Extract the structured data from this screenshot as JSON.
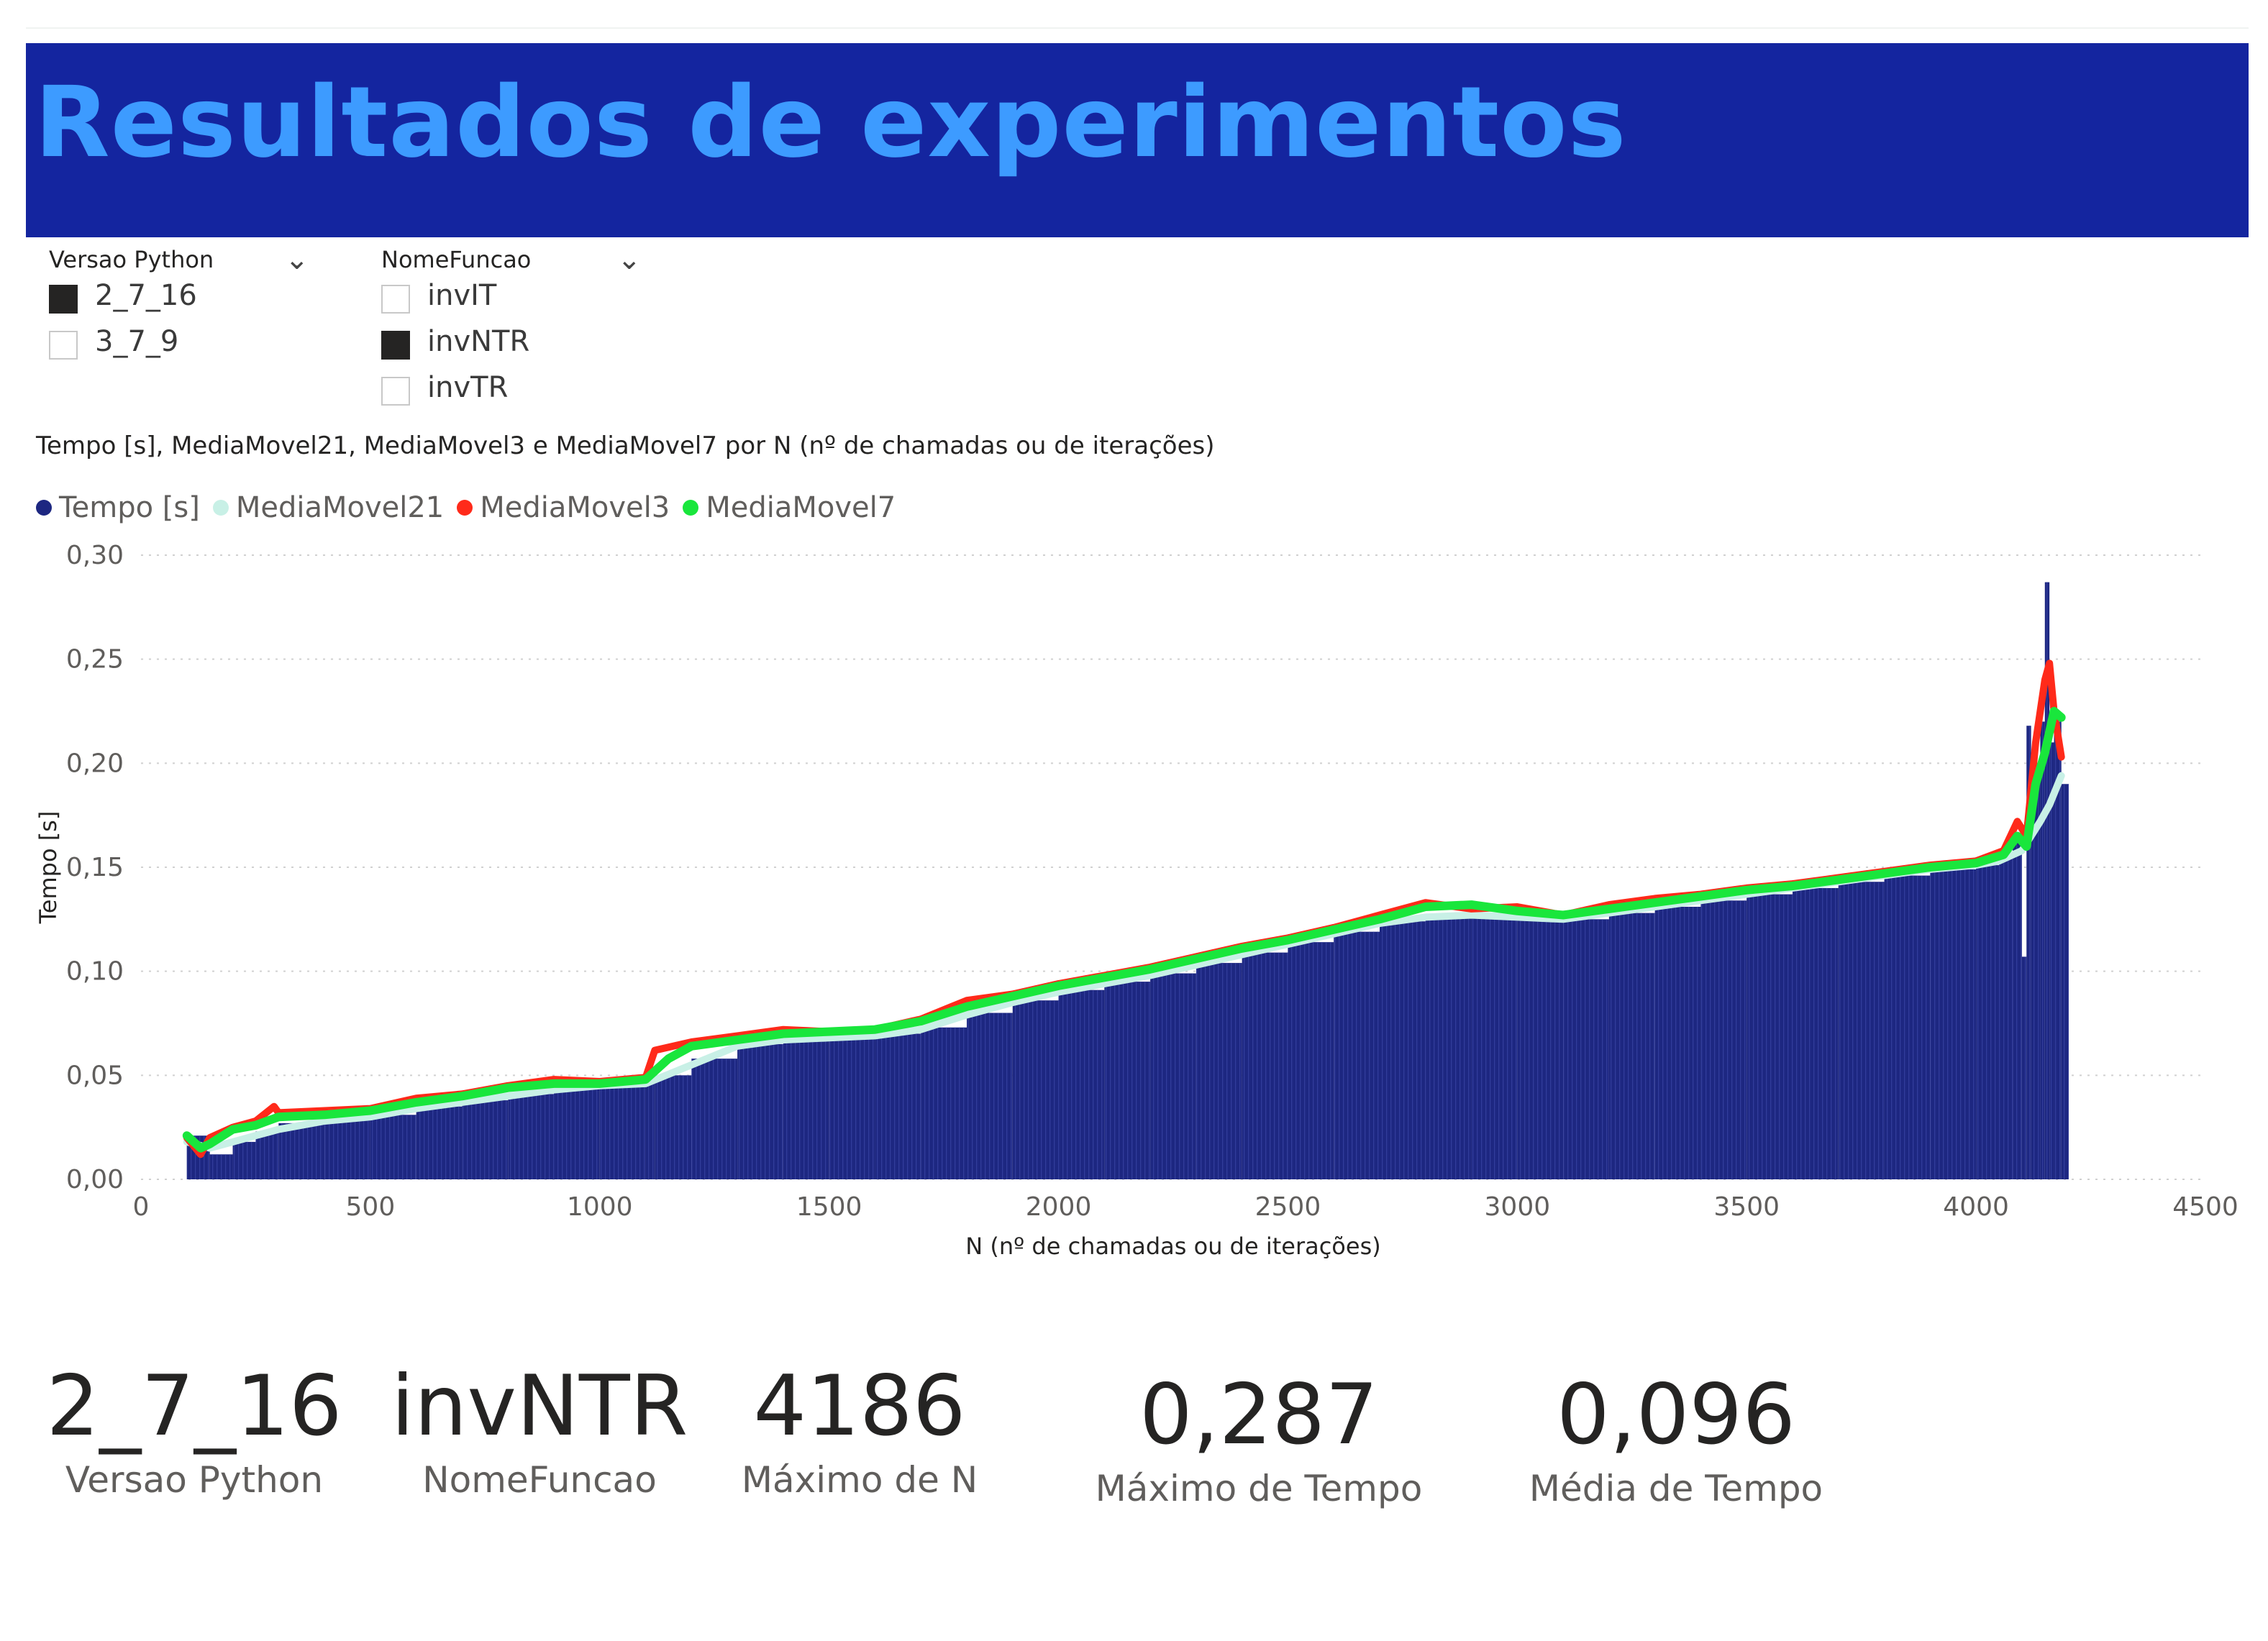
{
  "page": {
    "title": "Resultados de experimentos"
  },
  "slicers": {
    "version": {
      "title": "Versao Python",
      "options": [
        {
          "label": "2_7_16",
          "checked": true
        },
        {
          "label": "3_7_9",
          "checked": false
        }
      ]
    },
    "function": {
      "title": "NomeFuncao",
      "options": [
        {
          "label": "invIT",
          "checked": false
        },
        {
          "label": "invNTR",
          "checked": true
        },
        {
          "label": "invTR",
          "checked": false
        }
      ]
    }
  },
  "chart_title": "Tempo [s], MediaMovel21, MediaMovel3 e MediaMovel7 por N (nº de chamadas ou de iterações)",
  "chart_data": {
    "type": "bar",
    "xlabel": "N (nº de chamadas ou de iterações)",
    "ylabel": "Tempo [s]",
    "xlim": [
      0,
      4500
    ],
    "ylim": [
      0,
      0.3
    ],
    "xticks": [
      "0",
      "500",
      "1000",
      "1500",
      "2000",
      "2500",
      "3000",
      "3500",
      "4000",
      "4500"
    ],
    "yticks": [
      "0,00",
      "0,05",
      "0,10",
      "0,15",
      "0,20",
      "0,25",
      "0,30"
    ],
    "grid": true,
    "legend_position": "top-left",
    "colors": {
      "Tempo [s]": "#1d2781",
      "MediaMovel21": "#c8f0e6",
      "MediaMovel3": "#ff2a1a",
      "MediaMovel7": "#19e63c"
    },
    "series": [
      {
        "name": "Tempo [s]",
        "kind": "bar",
        "x": [
          100,
          150,
          200,
          250,
          300,
          400,
          500,
          600,
          700,
          800,
          900,
          1000,
          1100,
          1120,
          1200,
          1300,
          1400,
          1500,
          1600,
          1700,
          1800,
          1900,
          2000,
          2100,
          2200,
          2300,
          2400,
          2500,
          2600,
          2700,
          2800,
          2900,
          3000,
          3100,
          3200,
          3300,
          3400,
          3500,
          3600,
          3700,
          3800,
          3900,
          4000,
          4050,
          4080,
          4100,
          4110,
          4120,
          4140,
          4150,
          4160,
          4170,
          4186
        ],
        "y": [
          0.021,
          0.012,
          0.018,
          0.023,
          0.027,
          0.029,
          0.031,
          0.035,
          0.038,
          0.041,
          0.044,
          0.045,
          0.047,
          0.05,
          0.058,
          0.065,
          0.068,
          0.069,
          0.07,
          0.073,
          0.08,
          0.086,
          0.091,
          0.095,
          0.099,
          0.104,
          0.109,
          0.114,
          0.119,
          0.124,
          0.127,
          0.128,
          0.127,
          0.125,
          0.128,
          0.131,
          0.134,
          0.137,
          0.14,
          0.143,
          0.146,
          0.149,
          0.151,
          0.155,
          0.165,
          0.107,
          0.218,
          0.2,
          0.22,
          0.287,
          0.21,
          0.22,
          0.19
        ]
      },
      {
        "name": "MediaMovel21",
        "kind": "line",
        "x": [
          100,
          150,
          200,
          250,
          300,
          400,
          500,
          600,
          700,
          800,
          900,
          1000,
          1100,
          1200,
          1300,
          1400,
          1500,
          1600,
          1700,
          1800,
          1900,
          2000,
          2100,
          2200,
          2300,
          2400,
          2500,
          2600,
          2700,
          2800,
          2900,
          3000,
          3100,
          3200,
          3300,
          3400,
          3500,
          3600,
          3700,
          3800,
          3900,
          4000,
          4050,
          4100,
          4120,
          4140,
          4160,
          4186
        ],
        "y": [
          0.018,
          0.015,
          0.018,
          0.021,
          0.024,
          0.028,
          0.03,
          0.034,
          0.037,
          0.04,
          0.043,
          0.045,
          0.046,
          0.055,
          0.064,
          0.067,
          0.068,
          0.069,
          0.072,
          0.079,
          0.085,
          0.09,
          0.094,
          0.098,
          0.103,
          0.108,
          0.113,
          0.118,
          0.123,
          0.126,
          0.127,
          0.126,
          0.125,
          0.128,
          0.131,
          0.134,
          0.137,
          0.14,
          0.143,
          0.146,
          0.149,
          0.151,
          0.153,
          0.158,
          0.165,
          0.172,
          0.18,
          0.194
        ]
      },
      {
        "name": "MediaMovel3",
        "kind": "line",
        "x": [
          100,
          130,
          150,
          200,
          250,
          290,
          300,
          400,
          500,
          600,
          700,
          800,
          900,
          1000,
          1100,
          1120,
          1200,
          1300,
          1400,
          1500,
          1600,
          1700,
          1800,
          1900,
          2000,
          2100,
          2200,
          2300,
          2400,
          2500,
          2600,
          2700,
          2800,
          2900,
          3000,
          3100,
          3200,
          3300,
          3400,
          3500,
          3600,
          3700,
          3800,
          3900,
          4000,
          4060,
          4090,
          4110,
          4130,
          4150,
          4160,
          4170,
          4186
        ],
        "y": [
          0.02,
          0.012,
          0.02,
          0.025,
          0.028,
          0.035,
          0.032,
          0.033,
          0.034,
          0.039,
          0.041,
          0.045,
          0.048,
          0.047,
          0.049,
          0.062,
          0.066,
          0.069,
          0.072,
          0.071,
          0.072,
          0.077,
          0.086,
          0.089,
          0.094,
          0.098,
          0.102,
          0.107,
          0.112,
          0.116,
          0.121,
          0.127,
          0.133,
          0.13,
          0.131,
          0.127,
          0.132,
          0.135,
          0.137,
          0.14,
          0.142,
          0.145,
          0.148,
          0.151,
          0.153,
          0.158,
          0.172,
          0.165,
          0.21,
          0.24,
          0.248,
          0.225,
          0.203
        ]
      },
      {
        "name": "MediaMovel7",
        "kind": "line",
        "x": [
          100,
          130,
          150,
          200,
          250,
          300,
          400,
          500,
          600,
          700,
          800,
          900,
          1000,
          1100,
          1150,
          1200,
          1300,
          1400,
          1500,
          1600,
          1700,
          1800,
          1900,
          2000,
          2100,
          2200,
          2300,
          2400,
          2500,
          2600,
          2700,
          2800,
          2900,
          3000,
          3100,
          3200,
          3300,
          3400,
          3500,
          3600,
          3700,
          3800,
          3900,
          4000,
          4060,
          4090,
          4110,
          4130,
          4150,
          4170,
          4186
        ],
        "y": [
          0.021,
          0.015,
          0.017,
          0.024,
          0.026,
          0.03,
          0.031,
          0.033,
          0.037,
          0.04,
          0.044,
          0.046,
          0.046,
          0.048,
          0.058,
          0.064,
          0.067,
          0.07,
          0.071,
          0.072,
          0.076,
          0.083,
          0.088,
          0.093,
          0.097,
          0.101,
          0.106,
          0.111,
          0.115,
          0.12,
          0.125,
          0.131,
          0.132,
          0.129,
          0.127,
          0.13,
          0.133,
          0.136,
          0.139,
          0.141,
          0.144,
          0.147,
          0.15,
          0.152,
          0.156,
          0.165,
          0.16,
          0.19,
          0.205,
          0.225,
          0.222
        ]
      }
    ]
  },
  "kpis": [
    {
      "value": "2_7_16",
      "label": "Versao Python"
    },
    {
      "value": "invNTR",
      "label": "NomeFuncao"
    },
    {
      "value": "4186",
      "label": "Máximo de N"
    },
    {
      "value": "0,287",
      "label": "Máximo de Tempo"
    },
    {
      "value": "0,096",
      "label": "Média de Tempo"
    }
  ]
}
